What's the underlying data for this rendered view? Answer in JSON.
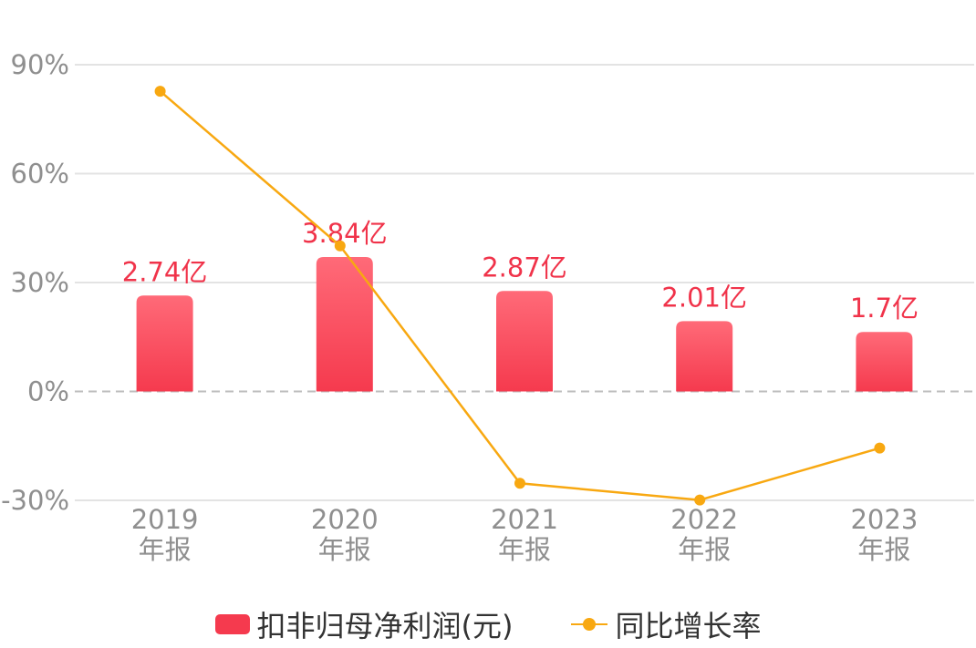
{
  "chart_data": {
    "type": "bar",
    "categories": [
      "2019\n年报",
      "2020\n年报",
      "2021\n年报",
      "2022\n年报",
      "2023\n年报"
    ],
    "series": [
      {
        "name": "扣非归母净利润(元)",
        "type": "bar",
        "values": [
          2.74,
          3.84,
          2.87,
          2.01,
          1.7
        ],
        "labels": [
          "2.74亿",
          "3.84亿",
          "2.87亿",
          "2.01亿",
          "1.7亿"
        ],
        "color": "#f53a4e",
        "color_top": "#ff6a78"
      },
      {
        "name": "同比增长率",
        "type": "line",
        "values": [
          82.7,
          40.1,
          -25.3,
          -29.9,
          -15.6
        ],
        "color": "#f8a811"
      }
    ],
    "yaxis": {
      "ticks": [
        "90%",
        "60%",
        "30%",
        "0%",
        "-30%"
      ],
      "tick_values": [
        90,
        60,
        30,
        0,
        -30
      ],
      "range": [
        -30,
        90
      ]
    },
    "grid": true,
    "zero_line": "dashed",
    "legend": "bottom-center"
  },
  "legend": {
    "bar_label": "扣非归母净利润(元)",
    "line_label": "同比增长率"
  },
  "colors": {
    "grid": "#e3e3e3",
    "zero_line": "#bdbdbd",
    "tick_text": "#8f8f8f",
    "label_text": "#f0334a"
  }
}
